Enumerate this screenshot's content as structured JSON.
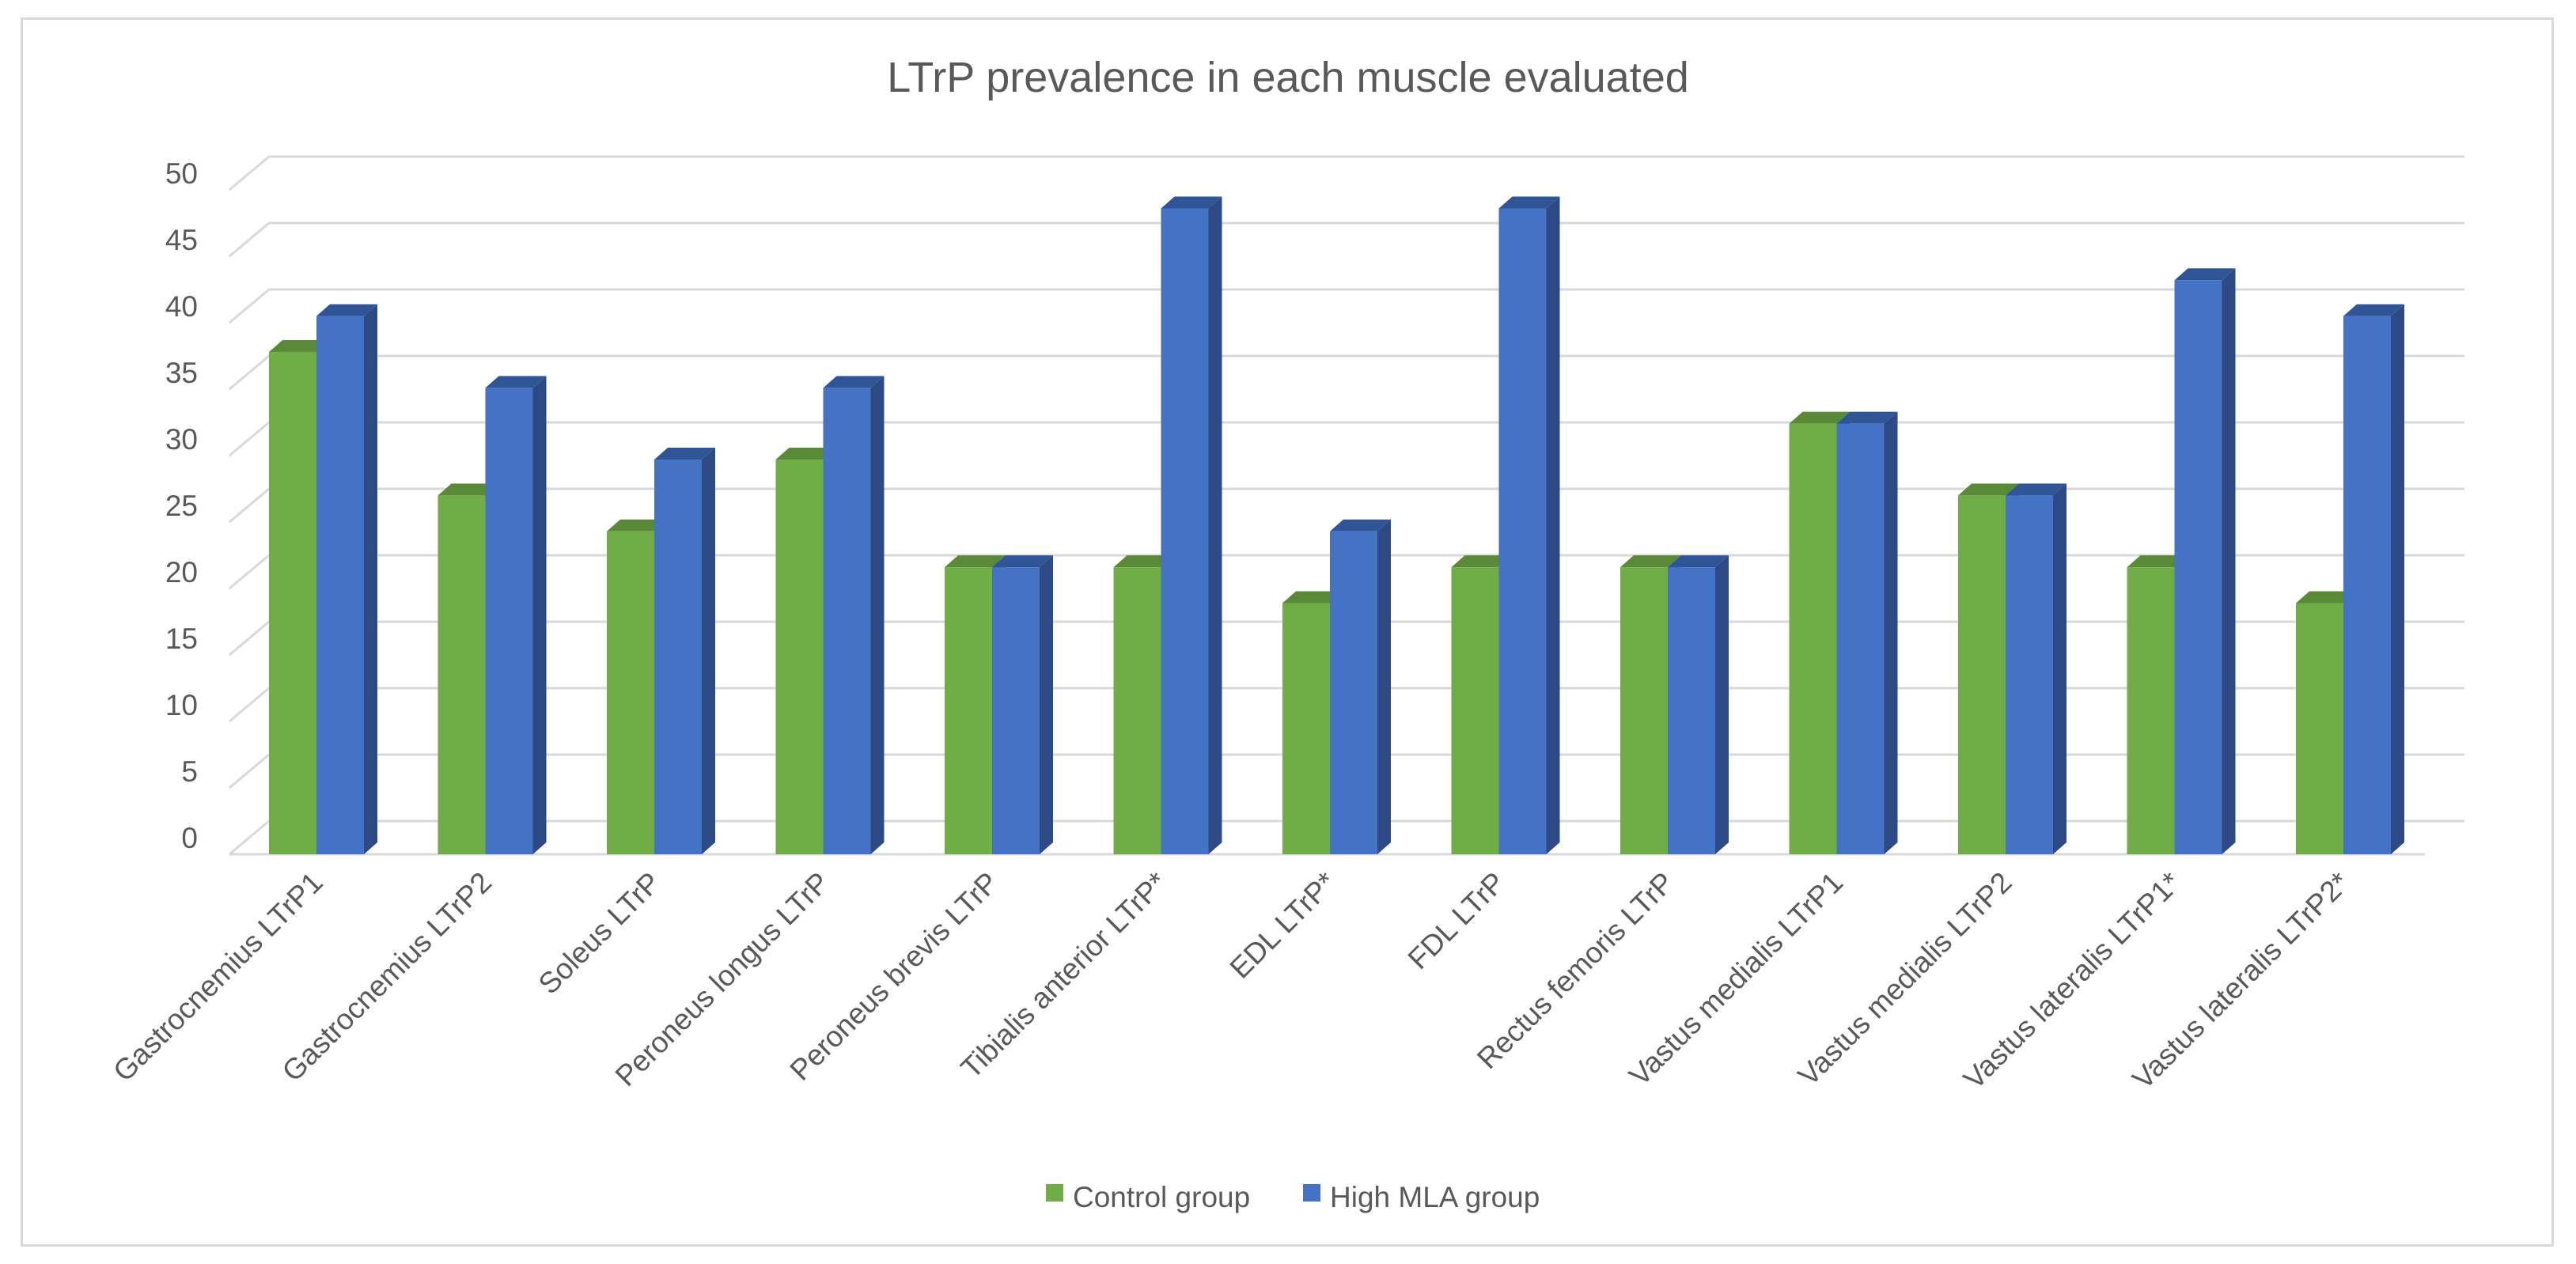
{
  "chart_data": {
    "type": "bar",
    "style": "3d-clustered-column",
    "title": "LTrP prevalence in each muscle evaluated",
    "xlabel": "",
    "ylabel": "",
    "ylim": [
      0,
      50
    ],
    "ytick_step": 5,
    "grid": true,
    "legend_position": "bottom",
    "categories": [
      "Gastrocnemius LTrP1",
      "Gastrocnemius LTrP2",
      "Soleus LTrP",
      "Peroneus longus LTrP",
      "Peroneus brevis LTrP",
      "Tibialis anterior LTrP*",
      "EDL LTrP*",
      "FDL LTrP",
      "Rectus femoris LTrP",
      "Vastus medialis LTrP1",
      "Vastus medialis LTrP2",
      "Vastus lateralis LTrP1*",
      "Vastus lateralis LTrP2*"
    ],
    "series": [
      {
        "name": "Control group",
        "color": "#70ad47",
        "top_color": "#5a8a38",
        "side_color": "#4e7a30",
        "values": [
          37.8,
          27.0,
          24.3,
          29.7,
          21.6,
          21.6,
          18.9,
          21.6,
          21.6,
          32.4,
          27.0,
          21.6,
          18.9
        ]
      },
      {
        "name": "High MLA group",
        "color": "#4472c4",
        "top_color": "#2f5597",
        "side_color": "#2e4a84",
        "values": [
          40.5,
          35.1,
          29.7,
          35.1,
          21.6,
          48.6,
          24.3,
          48.6,
          21.6,
          32.4,
          27.0,
          43.2,
          40.5
        ]
      }
    ]
  }
}
